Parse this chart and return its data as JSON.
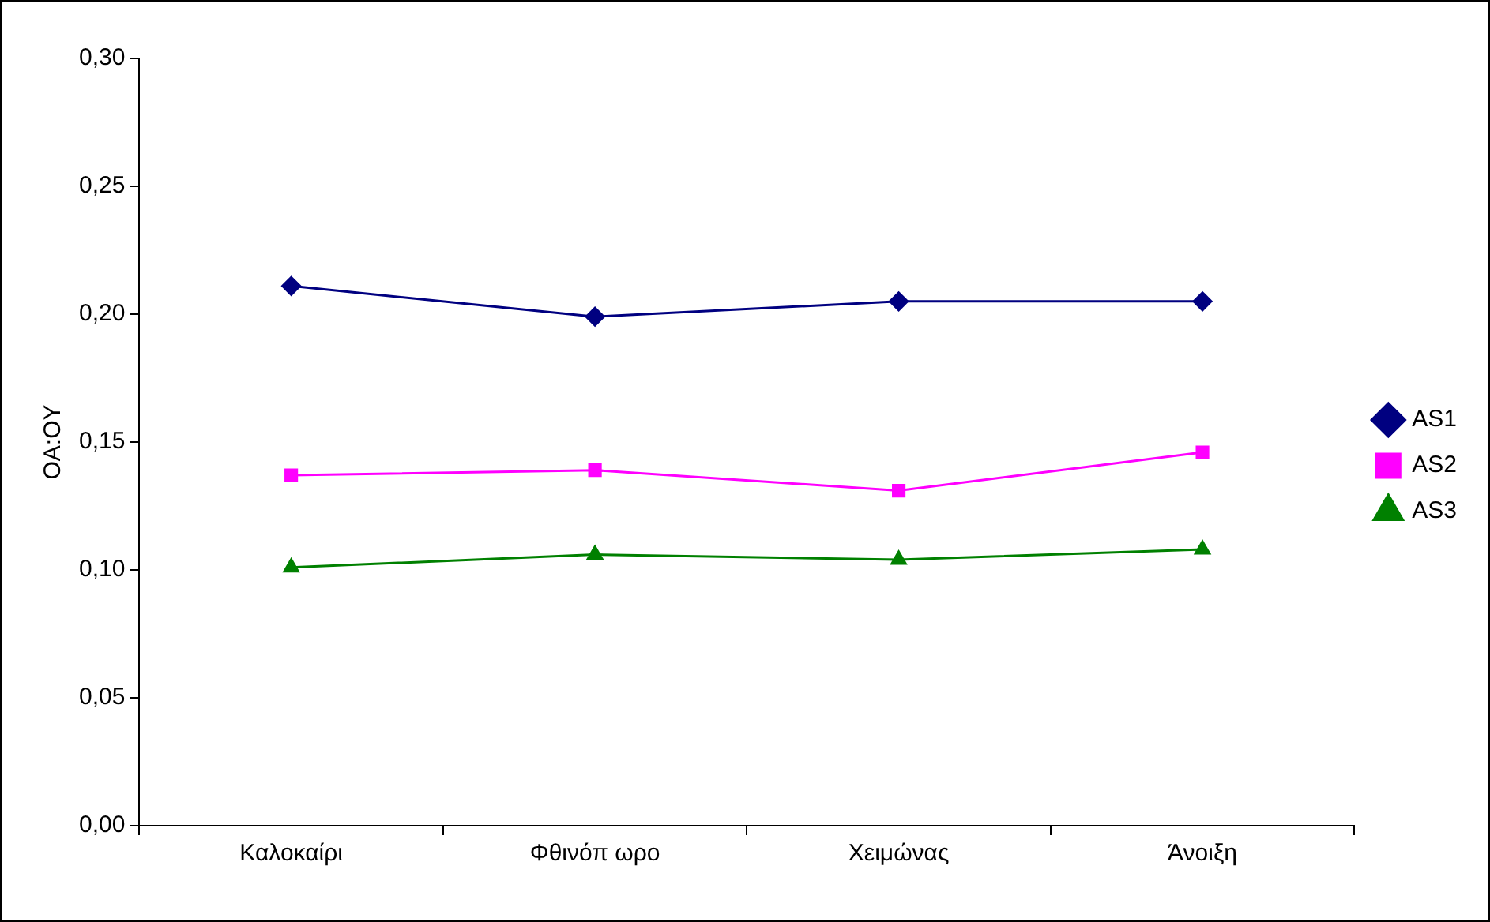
{
  "chart_data": {
    "type": "line",
    "ylabel": "OA:OY",
    "categories": [
      "Καλοκαίρι",
      "Φθινόπ ωρο",
      "Χειμώνας",
      "Άνοιξη"
    ],
    "series": [
      {
        "name": "AS1",
        "color": "#000080",
        "marker": "diamond",
        "values": [
          0.211,
          0.199,
          0.205,
          0.205
        ]
      },
      {
        "name": "AS2",
        "color": "#ff00ff",
        "marker": "square",
        "values": [
          0.137,
          0.139,
          0.131,
          0.146
        ]
      },
      {
        "name": "AS3",
        "color": "#008000",
        "marker": "triangle",
        "values": [
          0.101,
          0.106,
          0.104,
          0.108
        ]
      }
    ],
    "ylim": [
      0,
      0.3
    ],
    "yticks": [
      {
        "value": 0,
        "label": "0,00"
      },
      {
        "value": 0.05,
        "label": "0,05"
      },
      {
        "value": 0.1,
        "label": "0,10"
      },
      {
        "value": 0.15,
        "label": "0,15"
      },
      {
        "value": 0.2,
        "label": "0,20"
      },
      {
        "value": 0.25,
        "label": "0,25"
      },
      {
        "value": 0.3,
        "label": "0,30"
      }
    ],
    "grid": false,
    "legend": "right",
    "line_style": "solid"
  }
}
